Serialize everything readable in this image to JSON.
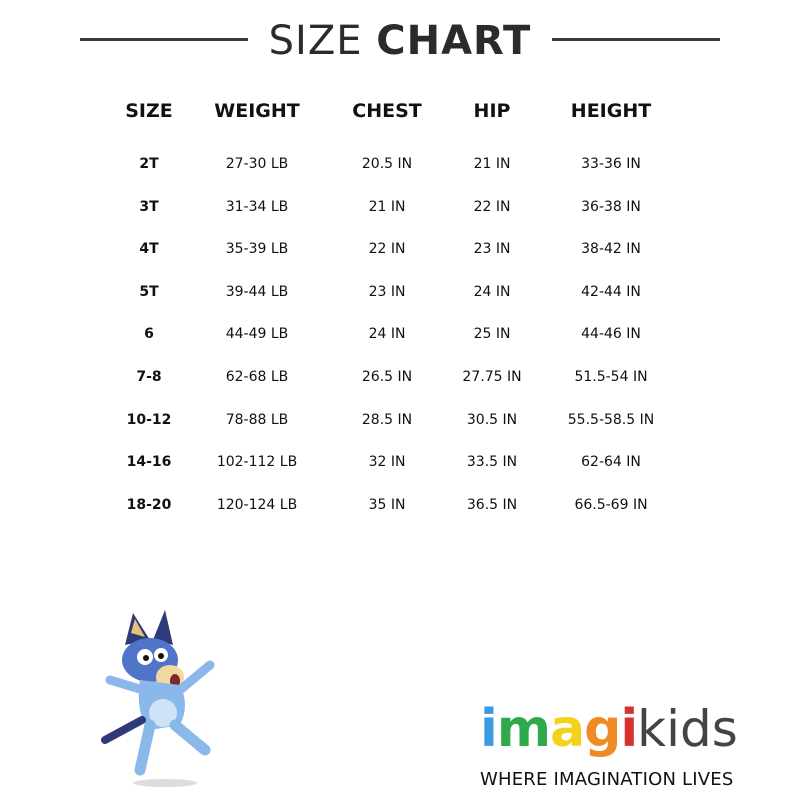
{
  "title": {
    "light": "SIZE",
    "bold": "CHART"
  },
  "headers": [
    "SIZE",
    "WEIGHT",
    "CHEST",
    "HIP",
    "HEIGHT"
  ],
  "rows": [
    [
      "2T",
      "27-30 LB",
      "20.5 IN",
      "21 IN",
      "33-36 IN"
    ],
    [
      "3T",
      "31-34 LB",
      "21 IN",
      "22 IN",
      "36-38 IN"
    ],
    [
      "4T",
      "35-39 LB",
      "22 IN",
      "23 IN",
      "38-42 IN"
    ],
    [
      "5T",
      "39-44 LB",
      "23 IN",
      "24 IN",
      "42-44 IN"
    ],
    [
      "6",
      "44-49 LB",
      "24 IN",
      "25 IN",
      "44-46 IN"
    ],
    [
      "7-8",
      "62-68 LB",
      "26.5 IN",
      "27.75 IN",
      "51.5-54 IN"
    ],
    [
      "10-12",
      "78-88 LB",
      "28.5 IN",
      "30.5 IN",
      "55.5-58.5 IN"
    ],
    [
      "14-16",
      "102-112 LB",
      "32 IN",
      "33.5 IN",
      "62-64 IN"
    ],
    [
      "18-20",
      "120-124 LB",
      "35 IN",
      "36.5 IN",
      "66.5-69 IN"
    ]
  ],
  "logo": {
    "letters": [
      "i",
      "m",
      "a",
      "g",
      "i"
    ],
    "colors": [
      "#3a9be0",
      "#2eaa4a",
      "#f2d21b",
      "#f08a24",
      "#d8322e"
    ],
    "kids": "kids",
    "tagline": "WHERE IMAGINATION LIVES"
  },
  "illustration": "bluey-character"
}
